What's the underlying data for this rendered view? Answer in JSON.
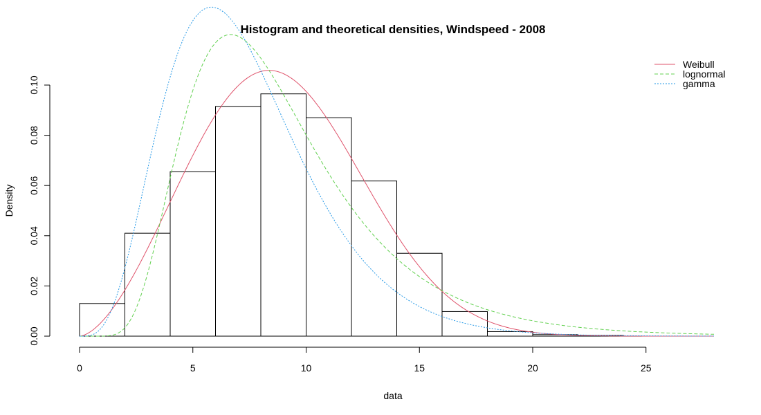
{
  "chart_data": {
    "type": "histogram",
    "title": "Histogram and theoretical densities, Windspeed - 2008",
    "xlabel": "data",
    "ylabel": "Density",
    "xlim": [
      0,
      28
    ],
    "ylim": [
      0,
      0.105
    ],
    "x_ticks": [
      0,
      5,
      10,
      15,
      20,
      25
    ],
    "x_tick_labels": [
      "0",
      "5",
      "10",
      "15",
      "20",
      "25"
    ],
    "y_ticks": [
      0,
      0.02,
      0.04,
      0.06,
      0.08,
      0.1
    ],
    "y_tick_labels": [
      "0.00",
      "0.02",
      "0.04",
      "0.06",
      "0.08",
      "0.10"
    ],
    "bins": [
      {
        "from": 0,
        "to": 2,
        "density": 0.013
      },
      {
        "from": 2,
        "to": 4,
        "density": 0.041
      },
      {
        "from": 4,
        "to": 6,
        "density": 0.0655
      },
      {
        "from": 6,
        "to": 8,
        "density": 0.0915
      },
      {
        "from": 8,
        "to": 10,
        "density": 0.0965
      },
      {
        "from": 10,
        "to": 12,
        "density": 0.087
      },
      {
        "from": 12,
        "to": 14,
        "density": 0.0618
      },
      {
        "from": 14,
        "to": 16,
        "density": 0.033
      },
      {
        "from": 16,
        "to": 18,
        "density": 0.0098
      },
      {
        "from": 18,
        "to": 20,
        "density": 0.0018
      },
      {
        "from": 20,
        "to": 22,
        "density": 0.0006
      },
      {
        "from": 22,
        "to": 24,
        "density": 0.0003
      }
    ],
    "density_x_range": [
      0,
      28
    ],
    "series": [
      {
        "name": "Weibull",
        "distribution": "weibull",
        "params": {
          "shape": 2.65,
          "scale": 10.0
        },
        "color": "#DF536B",
        "line_style": "solid"
      },
      {
        "name": "lognormal",
        "distribution": "lognormal",
        "params": {
          "meanlog": 2.1,
          "sdlog": 0.45
        },
        "color": "#61D04F",
        "line_style": "dashed"
      },
      {
        "name": "gamma",
        "distribution": "gamma",
        "params": {
          "shape": 4.82,
          "scale": 1.524
        },
        "color": "#2297E6",
        "line_style": "dotted"
      }
    ],
    "legend_position": "top-right",
    "grid": false
  }
}
